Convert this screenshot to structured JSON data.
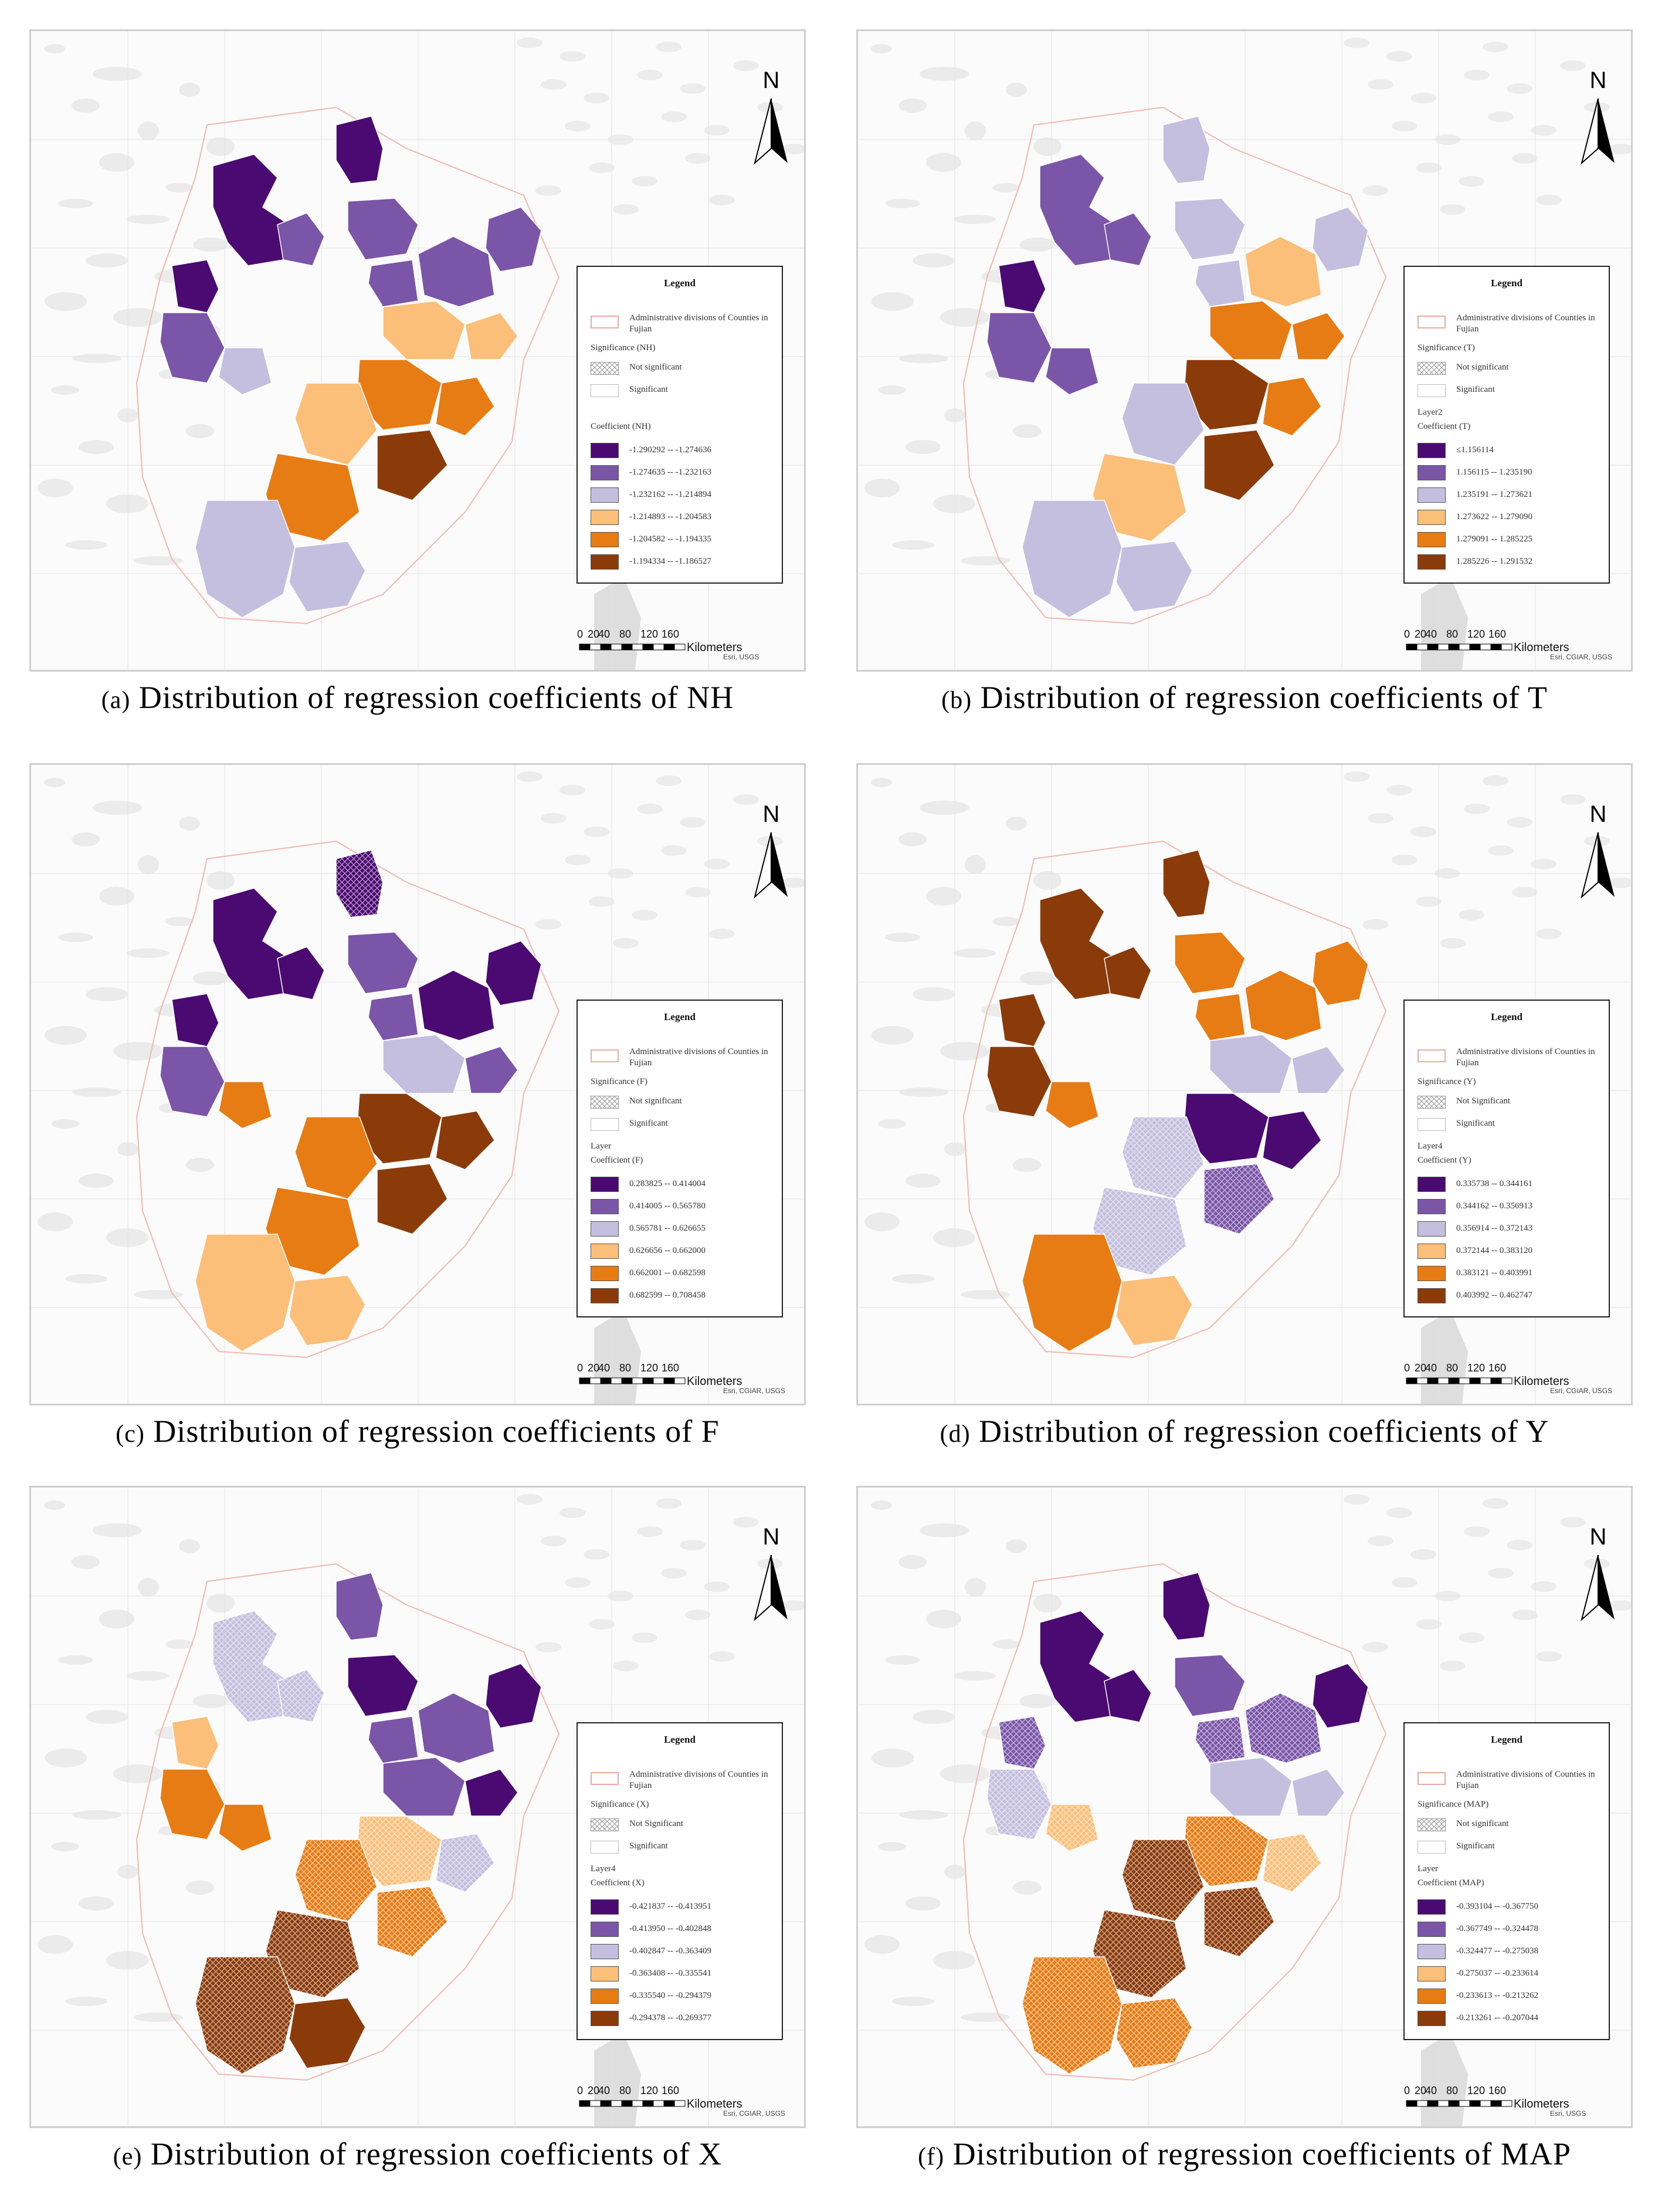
{
  "panels": [
    {
      "letter": "(a)",
      "caption": "Distribution of regression coefficients of NH",
      "legend": {
        "title": "Legend",
        "admin_label": "Administrative divisions of Counties in Fujian",
        "significance_header": "Significance (NH)",
        "not_significant_label": "Not significant",
        "significant_label": "Significant",
        "layer_label": "",
        "coefficient_header": "Coefficient (NH)",
        "classes": [
          {
            "label": "-1.290292 -- -1.274636",
            "color": "#4b0a72"
          },
          {
            "label": "-1.274635 -- -1.232163",
            "color": "#7a55a8"
          },
          {
            "label": "-1.232162 -- -1.214894",
            "color": "#c4bfde"
          },
          {
            "label": "-1.214893 -- -1.204583",
            "color": "#fbbf7a"
          },
          {
            "label": "-1.204582 -- -1.194335",
            "color": "#e87c14"
          },
          {
            "label": "-1.194334 -- -1.186527",
            "color": "#8b3a0a"
          }
        ]
      },
      "north_label": "N",
      "scale": {
        "ticks": [
          "0",
          "20",
          "40",
          "80",
          "120",
          "160"
        ],
        "unit": "Kilometers"
      },
      "attribution": "Esri, USGS"
    },
    {
      "letter": "(b)",
      "caption": "Distribution of regression coefficients of T",
      "legend": {
        "title": "Legend",
        "admin_label": "Administrative divisions of Counties in Fujian",
        "significance_header": "Significance (T)",
        "not_significant_label": "Not significant",
        "significant_label": "Significant",
        "layer_label": "Layer2",
        "coefficient_header": "Coefficient (T)",
        "classes": [
          {
            "label": "≤1.156114",
            "color": "#4b0a72"
          },
          {
            "label": "1.156115 -- 1.235190",
            "color": "#7a55a8"
          },
          {
            "label": "1.235191 -- 1.273621",
            "color": "#c4bfde"
          },
          {
            "label": "1.273622 -- 1.279090",
            "color": "#fbbf7a"
          },
          {
            "label": "1.279091 -- 1.285225",
            "color": "#e87c14"
          },
          {
            "label": "1.285226 -- 1.291532",
            "color": "#8b3a0a"
          }
        ]
      },
      "north_label": "N",
      "scale": {
        "ticks": [
          "0",
          "20",
          "40",
          "80",
          "120",
          "160"
        ],
        "unit": "Kilometers"
      },
      "attribution": "Esri, CGIAR, USGS"
    },
    {
      "letter": "(c)",
      "caption": "Distribution of regression coefficients of F",
      "legend": {
        "title": "Legend",
        "admin_label": "Administrative divisions of Counties in Fujian",
        "significance_header": "Significance (F)",
        "not_significant_label": "Not significant",
        "significant_label": "Significant",
        "layer_label": "Layer",
        "coefficient_header": "Coefficient (F)",
        "classes": [
          {
            "label": "0.283825 -- 0.414004",
            "color": "#4b0a72"
          },
          {
            "label": "0.414005 -- 0.565780",
            "color": "#7a55a8"
          },
          {
            "label": "0.565781 -- 0.626655",
            "color": "#c4bfde"
          },
          {
            "label": "0.626656 -- 0.662000",
            "color": "#fbbf7a"
          },
          {
            "label": "0.662001 -- 0.682598",
            "color": "#e87c14"
          },
          {
            "label": "0.682599 -- 0.708458",
            "color": "#8b3a0a"
          }
        ]
      },
      "north_label": "N",
      "scale": {
        "ticks": [
          "0",
          "20",
          "40",
          "80",
          "120",
          "160"
        ],
        "unit": "Kilometers"
      },
      "attribution": "Esri, CGIAR, USGS"
    },
    {
      "letter": "(d)",
      "caption": "Distribution of regression coefficients of Y",
      "legend": {
        "title": "Legend",
        "admin_label": "Administrative divisions of Counties in Fujian",
        "significance_header": "Significance (Y)",
        "not_significant_label": "Not Significant",
        "significant_label": "Significant",
        "layer_label": "Layer4",
        "coefficient_header": "Coefficient (Y)",
        "classes": [
          {
            "label": "0.335738 -- 0.344161",
            "color": "#4b0a72"
          },
          {
            "label": "0.344162 -- 0.356913",
            "color": "#7a55a8"
          },
          {
            "label": "0.356914 -- 0.372143",
            "color": "#c4bfde"
          },
          {
            "label": "0.372144 -- 0.383120",
            "color": "#fbbf7a"
          },
          {
            "label": "0.383121 -- 0.403991",
            "color": "#e87c14"
          },
          {
            "label": "0.403992 -- 0.462747",
            "color": "#8b3a0a"
          }
        ]
      },
      "north_label": "N",
      "scale": {
        "ticks": [
          "0",
          "20",
          "40",
          "80",
          "120",
          "160"
        ],
        "unit": "Kilometers"
      },
      "attribution": "Esri, CGIAR, USGS"
    },
    {
      "letter": "(e)",
      "caption": "Distribution of regression coefficients of X",
      "legend": {
        "title": "Legend",
        "admin_label": "Administrative divisions of Counties in Fujian",
        "significance_header": "Significance (X)",
        "not_significant_label": "Not Significant",
        "significant_label": "Significant",
        "layer_label": "Layer4",
        "coefficient_header": "Coefficient (X)",
        "classes": [
          {
            "label": "-0.421837 -- -0.413951",
            "color": "#4b0a72"
          },
          {
            "label": "-0.413950 -- -0.402848",
            "color": "#7a55a8"
          },
          {
            "label": "-0.402847 -- -0.363409",
            "color": "#c4bfde"
          },
          {
            "label": "-0.363408 -- -0.335541",
            "color": "#fbbf7a"
          },
          {
            "label": "-0.335540 -- -0.294379",
            "color": "#e87c14"
          },
          {
            "label": "-0.294378 -- -0.269377",
            "color": "#8b3a0a"
          }
        ]
      },
      "north_label": "N",
      "scale": {
        "ticks": [
          "0",
          "20",
          "40",
          "80",
          "120",
          "160"
        ],
        "unit": "Kilometers"
      },
      "attribution": "Esri, CGIAR, USGS"
    },
    {
      "letter": "(f)",
      "caption": "Distribution of regression coefficients of MAP",
      "legend": {
        "title": "Legend",
        "admin_label": "Administrative divisions of Counties in Fujian",
        "significance_header": "Significance (MAP)",
        "not_significant_label": "Not significant",
        "significant_label": "Significant",
        "layer_label": "Layer",
        "coefficient_header": "Coefficient (MAP)",
        "classes": [
          {
            "label": "-0.393104 -- -0.367750",
            "color": "#4b0a72"
          },
          {
            "label": "-0.367749 -- -0.324478",
            "color": "#7a55a8"
          },
          {
            "label": "-0.324477 -- -0.275038",
            "color": "#c4bfde"
          },
          {
            "label": "-0.275037 -- -0.233614",
            "color": "#fbbf7a"
          },
          {
            "label": "-0.233613 -- -0.213262",
            "color": "#e87c14"
          },
          {
            "label": "-0.213261 -- -0.207044",
            "color": "#8b3a0a"
          }
        ]
      },
      "north_label": "N",
      "scale": {
        "ticks": [
          "0",
          "20",
          "40",
          "80",
          "120",
          "160"
        ],
        "unit": "Kilometers"
      },
      "attribution": "Esri, USGS"
    }
  ],
  "map_fill_classes": [
    [
      "c0",
      "c0",
      "c1",
      "c1",
      "c2",
      "c1",
      "c1",
      "c3",
      "c4",
      "c4",
      "c5",
      "c5",
      "c5",
      "c4",
      "c3",
      "c2",
      "c2"
    ],
    [
      "c2",
      "c1",
      "c0",
      "c1",
      "c1",
      "c2",
      "c2",
      "c4",
      "c4",
      "c5",
      "c5",
      "c4",
      "c3",
      "c2",
      "c2",
      "c2",
      "c2"
    ],
    [
      "c0",
      "c0",
      "c0",
      "c1",
      "c3",
      "c4",
      "c0",
      "c0",
      "c2",
      "c4",
      "c5",
      "c5",
      "c5",
      "c4",
      "c3",
      "c3",
      "c3"
    ],
    [
      "c5",
      "c5",
      "c5",
      "c4",
      "c4",
      "c4",
      "c4",
      "c4",
      "c2",
      "c0",
      "c0",
      "c1",
      "c2",
      "c2",
      "c4",
      "c3",
      "c3"
    ],
    [
      "c1",
      "c2",
      "c3",
      "c4",
      "c4",
      "c1",
      "c1",
      "c0",
      "c0",
      "c2",
      "c4",
      "c4",
      "c5",
      "c5",
      "c5",
      "c5",
      "c5"
    ],
    [
      "c0",
      "c0",
      "c1",
      "c2",
      "c3",
      "c1",
      "c1",
      "c0",
      "c2",
      "c3",
      "c4",
      "c5",
      "c5",
      "c5",
      "c4",
      "c4",
      "c4"
    ]
  ]
}
